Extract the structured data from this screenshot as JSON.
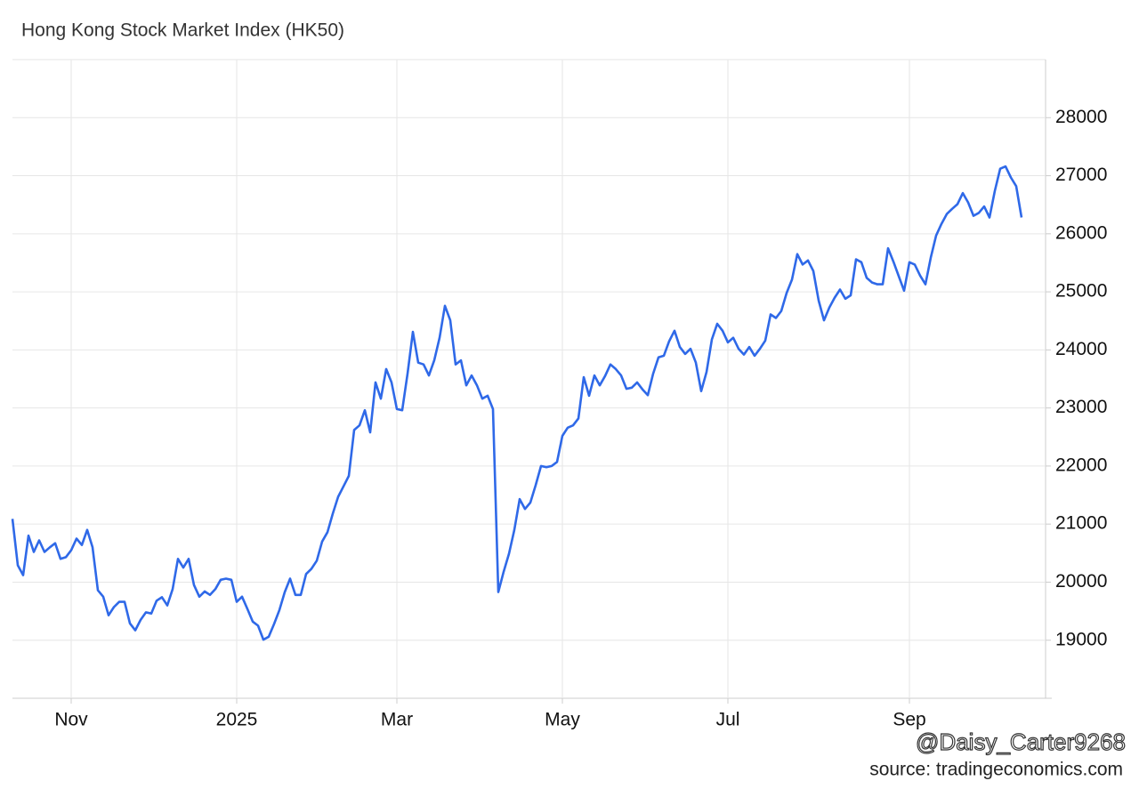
{
  "chart_data": {
    "type": "line",
    "title": "Hong Kong Stock Market Index (HK50)",
    "source": "source: tradingeconomics.com",
    "watermark": "@Daisy_Carter9268",
    "categories": [
      null,
      null,
      null,
      null,
      null,
      null,
      null,
      null,
      null,
      null,
      null,
      "Nov",
      null,
      null,
      null,
      null,
      null,
      null,
      null,
      null,
      null,
      null,
      null,
      null,
      null,
      null,
      null,
      null,
      null,
      null,
      null,
      null,
      null,
      null,
      null,
      null,
      null,
      null,
      null,
      null,
      null,
      null,
      "2025",
      null,
      null,
      null,
      null,
      null,
      null,
      null,
      null,
      null,
      null,
      null,
      null,
      null,
      null,
      null,
      null,
      null,
      null,
      null,
      null,
      null,
      null,
      null,
      null,
      null,
      null,
      null,
      null,
      null,
      "Mar",
      null,
      null,
      null,
      null,
      null,
      null,
      null,
      null,
      null,
      null,
      null,
      null,
      null,
      null,
      null,
      null,
      null,
      null,
      null,
      null,
      null,
      null,
      null,
      null,
      null,
      null,
      null,
      null,
      null,
      null,
      "May",
      null,
      null,
      null,
      null,
      null,
      null,
      null,
      null,
      null,
      null,
      null,
      null,
      null,
      null,
      null,
      null,
      null,
      null,
      null,
      null,
      null,
      null,
      null,
      null,
      null,
      null,
      null,
      null,
      null,
      null,
      "Jul",
      null,
      null,
      null,
      null,
      null,
      null,
      null,
      null,
      null,
      null,
      null,
      null,
      null,
      null,
      null,
      null,
      null,
      null,
      null,
      null,
      null,
      null,
      null,
      null,
      null,
      null,
      null,
      null,
      null,
      null,
      null,
      null,
      null,
      "Sep",
      null,
      null,
      null,
      null,
      null,
      null,
      null,
      null,
      null,
      null,
      null,
      null,
      null,
      null,
      null,
      null,
      null,
      null,
      null,
      null,
      null
    ],
    "series": [
      {
        "name": "HK50",
        "color": "#2f69e8",
        "values": [
          21090,
          20290,
          20120,
          20800,
          20520,
          20720,
          20520,
          20600,
          20670,
          20400,
          20430,
          20550,
          20750,
          20640,
          20900,
          20600,
          19860,
          19750,
          19430,
          19570,
          19660,
          19660,
          19290,
          19170,
          19350,
          19480,
          19460,
          19680,
          19740,
          19600,
          19880,
          20400,
          20250,
          20400,
          19950,
          19750,
          19840,
          19780,
          19880,
          20040,
          20060,
          20040,
          19660,
          19750,
          19540,
          19320,
          19250,
          19010,
          19060,
          19280,
          19520,
          19830,
          20060,
          19780,
          19780,
          20140,
          20230,
          20370,
          20700,
          20860,
          21180,
          21470,
          21650,
          21830,
          22620,
          22700,
          22960,
          22580,
          23440,
          23160,
          23670,
          23440,
          22980,
          22960,
          23590,
          24310,
          23780,
          23750,
          23560,
          23820,
          24210,
          24760,
          24510,
          23750,
          23820,
          23390,
          23560,
          23390,
          23160,
          23210,
          22980,
          19830,
          20180,
          20490,
          20900,
          21430,
          21260,
          21370,
          21670,
          22000,
          21980,
          22000,
          22070,
          22520,
          22660,
          22700,
          22820,
          23530,
          23210,
          23560,
          23390,
          23550,
          23750,
          23670,
          23560,
          23330,
          23350,
          23440,
          23320,
          23220,
          23590,
          23870,
          23900,
          24150,
          24330,
          24050,
          23930,
          24020,
          23780,
          23290,
          23620,
          24180,
          24450,
          24330,
          24130,
          24210,
          24020,
          23920,
          24050,
          23900,
          24020,
          24160,
          24610,
          24550,
          24670,
          24980,
          25210,
          25650,
          25470,
          25540,
          25360,
          24850,
          24510,
          24730,
          24900,
          25040,
          24880,
          24940,
          25560,
          25510,
          25240,
          25160,
          25130,
          25130,
          25750,
          25520,
          25270,
          25020,
          25510,
          25470,
          25280,
          25130,
          25590,
          25970,
          26170,
          26340,
          26430,
          26510,
          26700,
          26540,
          26310,
          26360,
          26470,
          26280,
          26740,
          27120,
          27160,
          26970,
          26820,
          26280
        ]
      }
    ],
    "ylim": [
      18000,
      29000
    ],
    "yticks": [
      19000,
      20000,
      21000,
      22000,
      23000,
      24000,
      25000,
      26000,
      27000,
      28000
    ],
    "grid": true
  }
}
